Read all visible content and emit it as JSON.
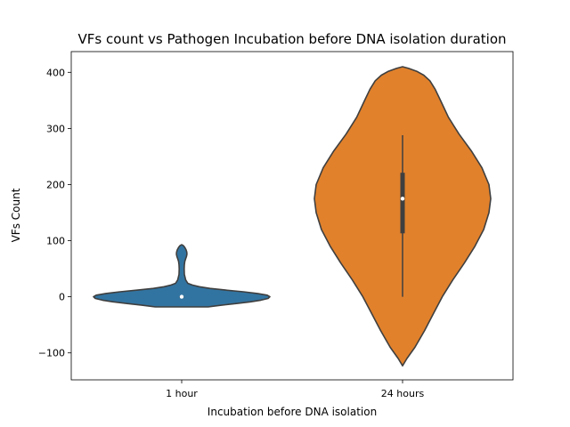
{
  "chart_data": {
    "type": "violin",
    "title": "VFs count vs Pathogen Incubation before DNA isolation duration",
    "xlabel": "Incubation before DNA isolation",
    "ylabel": "VFs Count",
    "categories": [
      "1 hour",
      "24 hours"
    ],
    "ylim": [
      -148,
      437
    ],
    "yticks": [
      -100,
      0,
      100,
      200,
      300,
      400
    ],
    "ytick_labels": [
      "−100",
      "0",
      "100",
      "200",
      "300",
      "400"
    ],
    "grid": false,
    "legend": "none",
    "series": [
      {
        "category": "1 hour",
        "color": "#3274a1",
        "range": [
          -18,
          93
        ],
        "quartiles": [
          0,
          0,
          1
        ],
        "whiskers": [
          -1,
          2
        ],
        "median": 0,
        "density_profile": [
          [
            -18,
            0.3
          ],
          [
            -17,
            0.34
          ],
          [
            -15,
            0.45
          ],
          [
            -12,
            0.62
          ],
          [
            -9,
            0.78
          ],
          [
            -6,
            0.9
          ],
          [
            -3,
            0.98
          ],
          [
            0,
            1.0
          ],
          [
            3,
            0.97
          ],
          [
            6,
            0.86
          ],
          [
            9,
            0.7
          ],
          [
            12,
            0.5
          ],
          [
            15,
            0.32
          ],
          [
            18,
            0.2
          ],
          [
            21,
            0.12
          ],
          [
            24,
            0.07
          ],
          [
            30,
            0.045
          ],
          [
            40,
            0.03
          ],
          [
            50,
            0.028
          ],
          [
            57,
            0.03
          ],
          [
            63,
            0.035
          ],
          [
            68,
            0.045
          ],
          [
            72,
            0.055
          ],
          [
            76,
            0.06
          ],
          [
            80,
            0.058
          ],
          [
            84,
            0.05
          ],
          [
            88,
            0.035
          ],
          [
            91,
            0.02
          ],
          [
            93,
            0.0
          ]
        ]
      },
      {
        "category": "24 hours",
        "color": "#e1812c",
        "range": [
          -123,
          410
        ],
        "quartiles": [
          113,
          175,
          221
        ],
        "whiskers": [
          0,
          288
        ],
        "median": 175,
        "density_profile": [
          [
            -123,
            0.0
          ],
          [
            -110,
            0.05
          ],
          [
            -90,
            0.14
          ],
          [
            -60,
            0.25
          ],
          [
            -30,
            0.35
          ],
          [
            0,
            0.45
          ],
          [
            30,
            0.57
          ],
          [
            60,
            0.7
          ],
          [
            90,
            0.82
          ],
          [
            120,
            0.92
          ],
          [
            150,
            0.98
          ],
          [
            175,
            1.0
          ],
          [
            200,
            0.98
          ],
          [
            230,
            0.9
          ],
          [
            260,
            0.78
          ],
          [
            290,
            0.64
          ],
          [
            320,
            0.52
          ],
          [
            350,
            0.43
          ],
          [
            370,
            0.37
          ],
          [
            385,
            0.31
          ],
          [
            395,
            0.24
          ],
          [
            402,
            0.16
          ],
          [
            407,
            0.07
          ],
          [
            410,
            0.0
          ]
        ]
      }
    ]
  }
}
